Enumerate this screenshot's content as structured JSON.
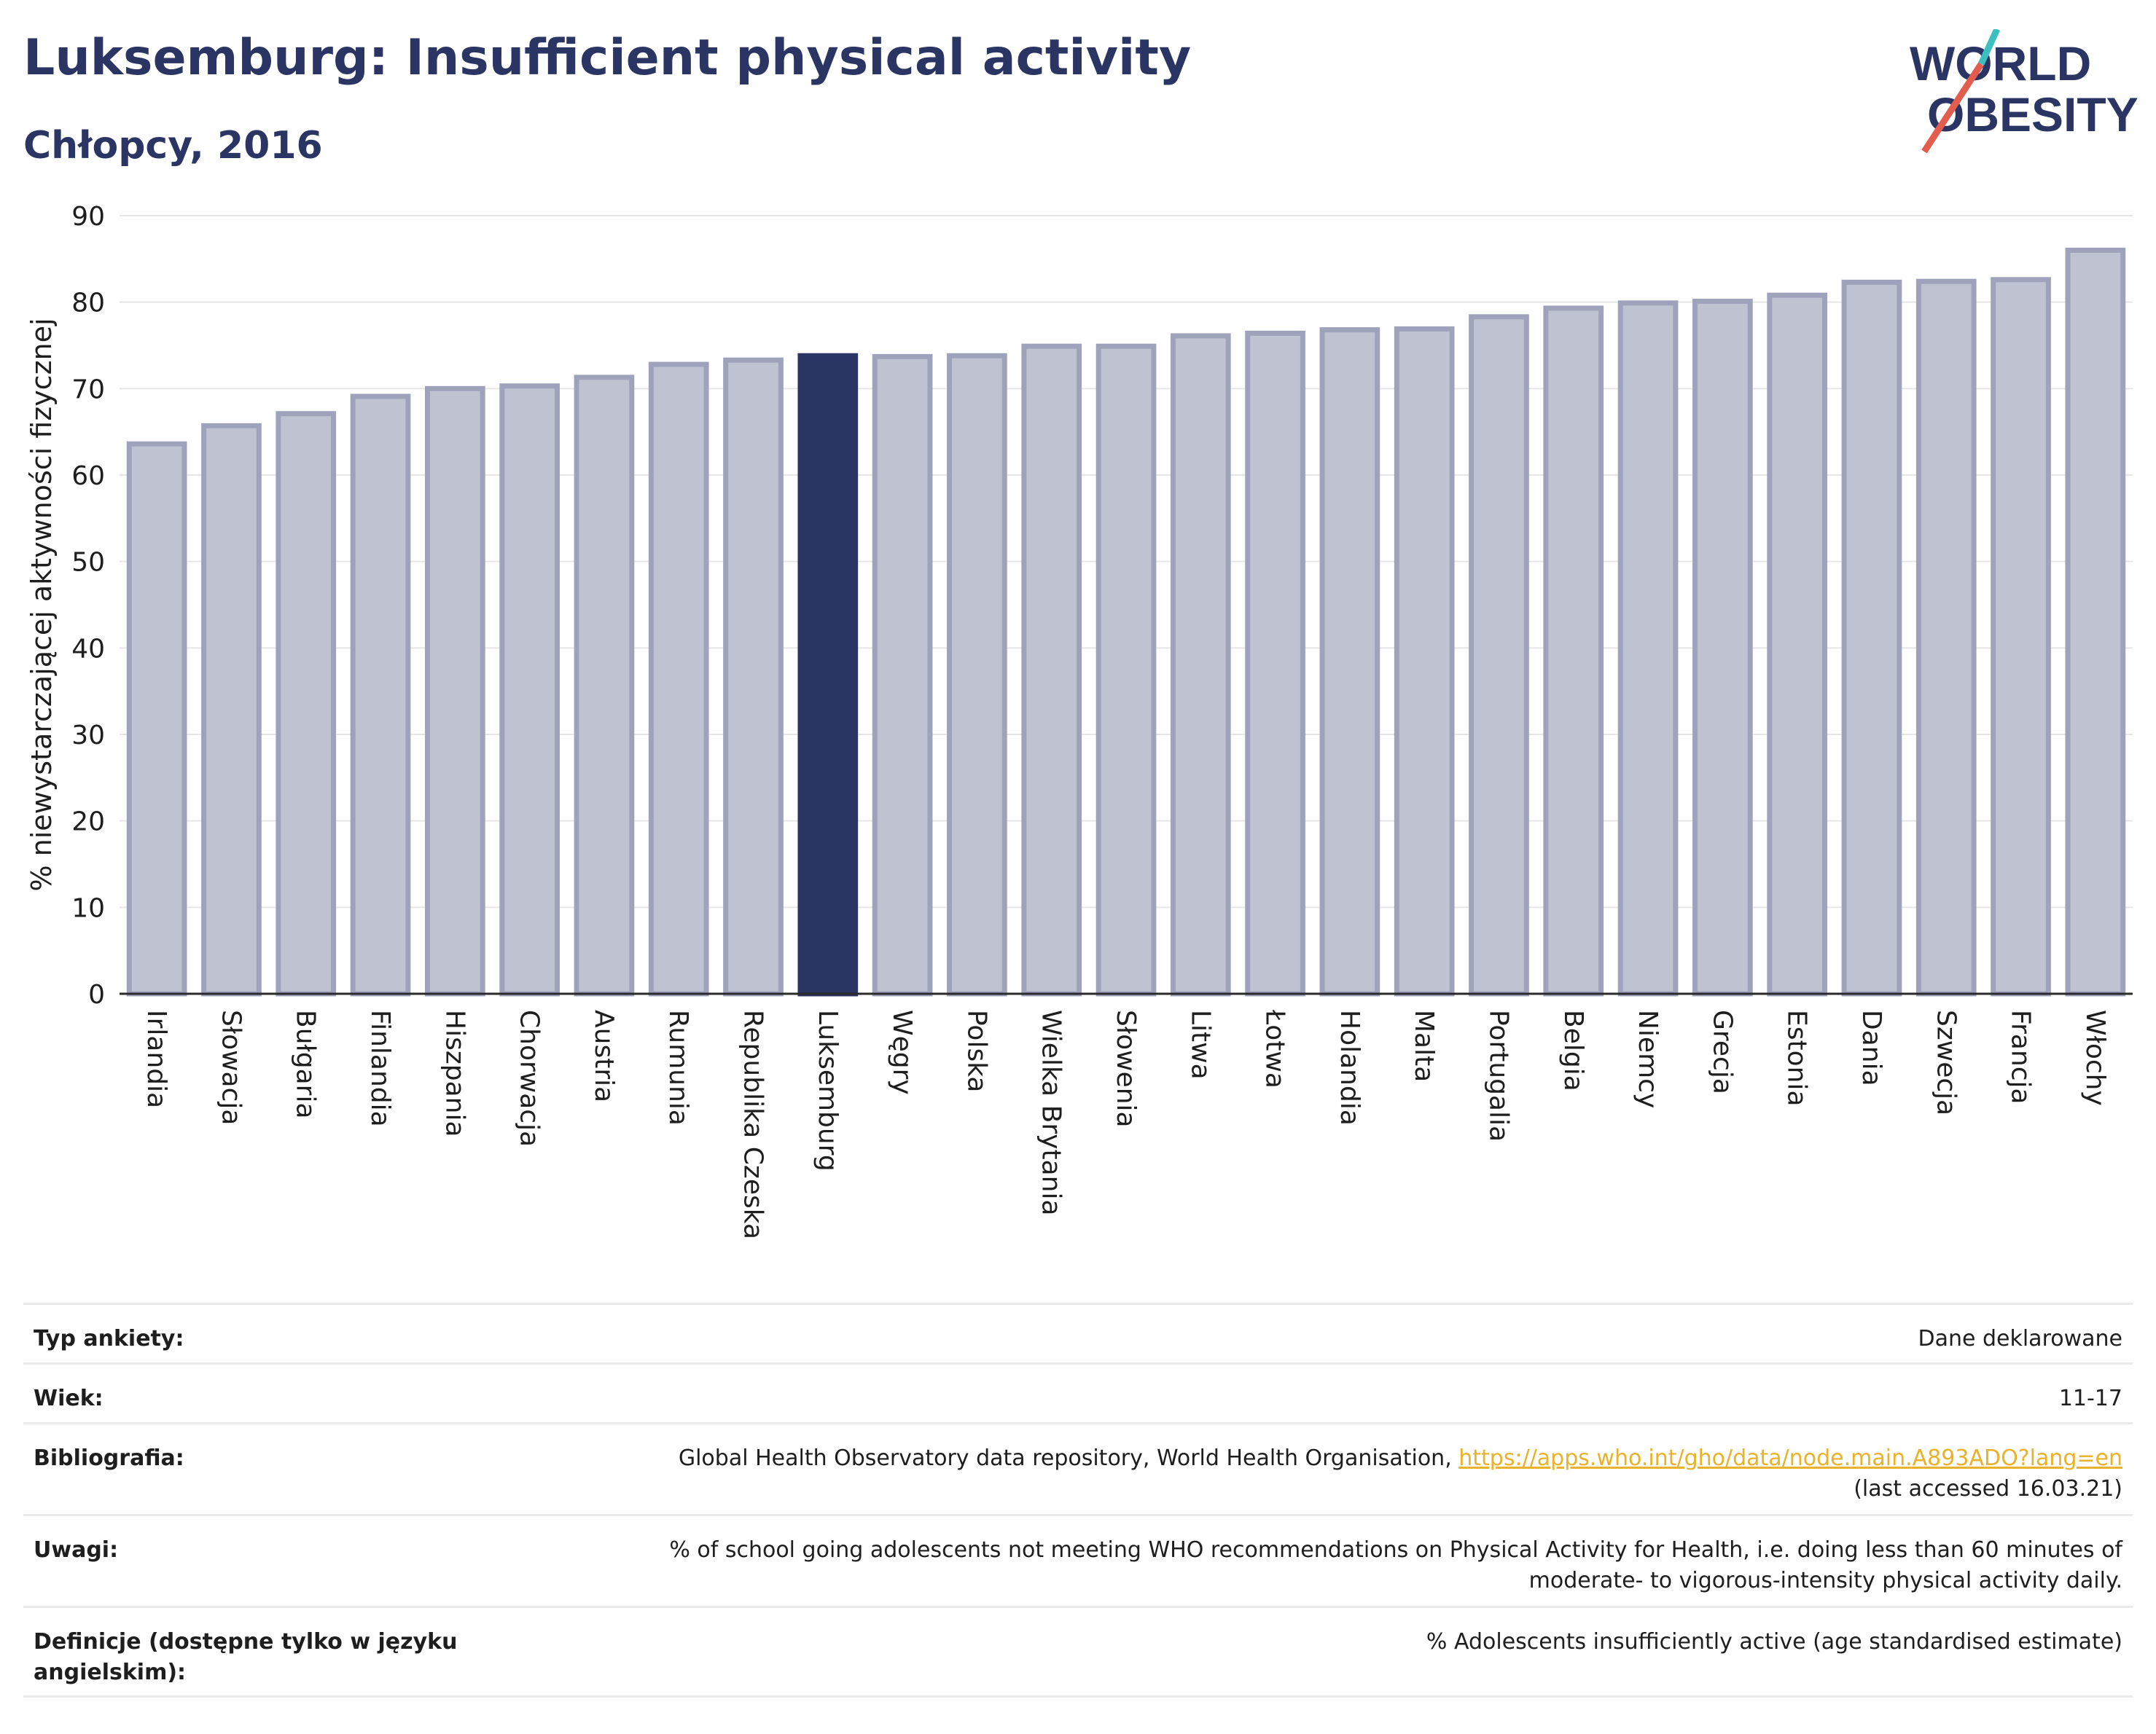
{
  "header": {
    "title": "Luksemburg: Insufficient physical activity",
    "subtitle": "Chłopcy, 2016"
  },
  "logo": {
    "line1": "WORLD",
    "line2": "OBESITY"
  },
  "chart_data": {
    "type": "bar",
    "title": "Luksemburg: Insufficient physical activity",
    "subtitle": "Chłopcy, 2016",
    "ylabel": "% niewystarczającej aktywności fizycznej",
    "xlabel": "",
    "ylim": [
      0,
      90
    ],
    "yticks": [
      0,
      10,
      20,
      30,
      40,
      50,
      60,
      70,
      80,
      90
    ],
    "grid": true,
    "highlight": "Luksemburg",
    "colors": {
      "bar": "#bfc2d0",
      "bar_border": "#9ea3bb",
      "highlight": "#2b3564"
    },
    "categories": [
      "Irlandia",
      "Słowacja",
      "Bułgaria",
      "Finlandia",
      "Hiszpania",
      "Chorwacja",
      "Austria",
      "Rumunia",
      "Republika Czeska",
      "Luksemburg",
      "Węgry",
      "Polska",
      "Wielka Brytania",
      "Słowenia",
      "Litwa",
      "Łotwa",
      "Holandia",
      "Malta",
      "Portugalia",
      "Belgia",
      "Niemcy",
      "Grecja",
      "Estonia",
      "Dania",
      "Szwecja",
      "Francja",
      "Włochy"
    ],
    "values": [
      63.6,
      65.7,
      67.1,
      69.1,
      70.0,
      70.3,
      71.3,
      72.8,
      73.3,
      73.8,
      73.7,
      73.8,
      74.9,
      74.9,
      76.1,
      76.4,
      76.8,
      76.9,
      78.3,
      79.3,
      79.9,
      80.1,
      80.8,
      82.3,
      82.4,
      82.6,
      86.0
    ]
  },
  "info": {
    "survey_label": "Typ ankiety:",
    "survey_value": "Dane deklarowane",
    "age_label": "Wiek:",
    "age_value": "11-17",
    "bib_label": "Bibliografia:",
    "bib_text": "Global Health Observatory data repository, World Health Organisation, ",
    "bib_link": "https://apps.who.int/gho/data/node.main.A893ADO?lang=en",
    "bib_accessed": "(last accessed 16.03.21)",
    "notes_label": "Uwagi:",
    "notes_line1": "% of school going adolescents not meeting WHO recommendations on Physical Activity for Health, i.e. doing less than 60 minutes of",
    "notes_line2": "moderate- to vigorous-intensity physical activity daily.",
    "def_label": "Definicje (dostępne tylko w języku angielskim):",
    "def_value": "% Adolescents insufficiently active (age standardised estimate)"
  }
}
